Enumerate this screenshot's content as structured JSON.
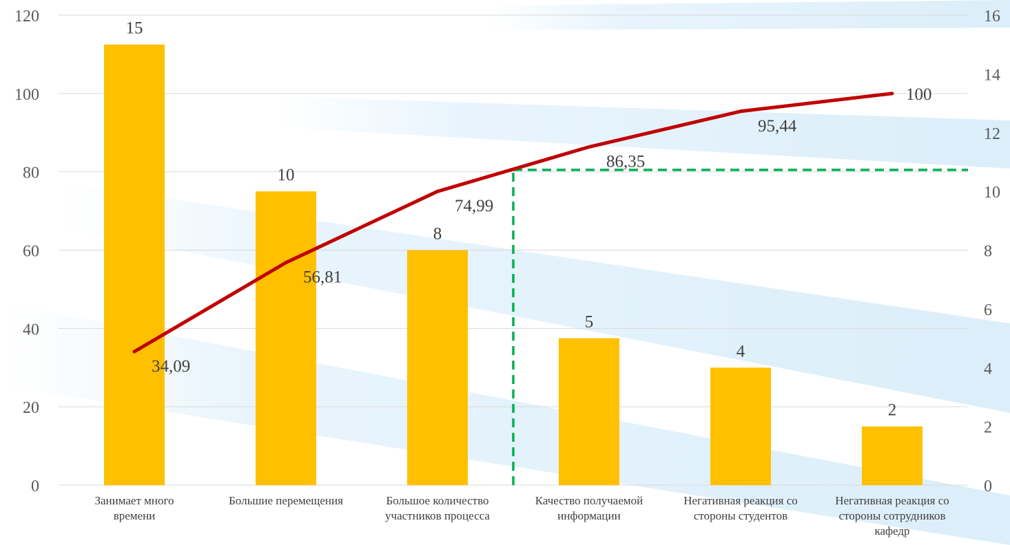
{
  "chart_data": {
    "type": "bar",
    "categories": [
      [
        "Занимает много",
        "времени"
      ],
      [
        "Большие перемещения"
      ],
      [
        "Большое количество",
        "участников процесса"
      ],
      [
        "Качество получаемой",
        "информации"
      ],
      [
        "Негативная реакция со",
        "стороны студентов"
      ],
      [
        "Негативная реакция со",
        "стороны сотрудников",
        "кафедр"
      ]
    ],
    "series": [
      {
        "type": "bar",
        "axis": "right",
        "color": "#FFC000",
        "values": [
          15,
          10,
          8,
          5,
          4,
          2
        ],
        "labels": [
          "15",
          "10",
          "8",
          "5",
          "4",
          "2"
        ]
      },
      {
        "type": "line",
        "axis": "left",
        "color": "#C00000",
        "values": [
          34.09,
          56.81,
          74.99,
          86.35,
          95.44,
          100
        ],
        "labels": [
          "34,09",
          "56,81",
          "74,99",
          "86,35",
          "95,44",
          "100"
        ]
      }
    ],
    "y_left": {
      "min": 0,
      "max": 120,
      "ticks": [
        "0",
        "20",
        "40",
        "60",
        "80",
        "100",
        "120"
      ]
    },
    "y_right": {
      "min": 0,
      "max": 16,
      "ticks": [
        "0",
        "2",
        "4",
        "6",
        "8",
        "10",
        "12",
        "14",
        "16"
      ]
    },
    "threshold": {
      "color": "#00B050",
      "style": "dashed",
      "y_left": 80.5,
      "x_category_boundary": 3
    },
    "grid": true,
    "legend": "none"
  }
}
